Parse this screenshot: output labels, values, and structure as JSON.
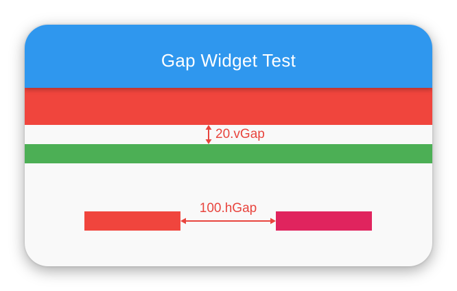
{
  "app_bar": {
    "title": "Gap Widget Test"
  },
  "annotations": {
    "vertical_gap_label": "20.vGap",
    "horizontal_gap_label": "100.hGap"
  },
  "colors": {
    "app_bar": "#2f97ee",
    "red": "#f0453d",
    "green": "#4caf55",
    "pink": "#e0245e",
    "annotation": "#e8443d",
    "background": "#f9f9f9"
  }
}
